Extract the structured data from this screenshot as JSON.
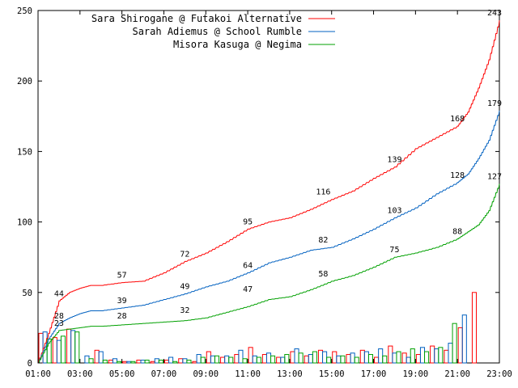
{
  "chart_data": {
    "type": "line",
    "title": "",
    "xlabel": "",
    "ylabel": "",
    "ylim": [
      0,
      250
    ],
    "xlim": [
      "01:00",
      "23:00"
    ],
    "yticks": [
      0,
      50,
      100,
      150,
      200,
      250
    ],
    "xticks": [
      "01:00",
      "03:00",
      "05:00",
      "07:00",
      "09:00",
      "11:00",
      "13:00",
      "15:00",
      "17:00",
      "19:00",
      "21:00",
      "23:00"
    ],
    "grid": false,
    "legend_position": "top-right",
    "hour_label_times": [
      "02:00",
      "03:00",
      "04:00",
      "05:00",
      "06:00",
      "07:00",
      "08:00",
      "09:00",
      "10:00",
      "11:00",
      "12:00",
      "13:00",
      "14:00",
      "15:00",
      "16:00",
      "17:00",
      "18:00",
      "19:00",
      "20:00",
      "21:00",
      "22:00",
      "23:00"
    ],
    "series": [
      {
        "name": "Sara Shirogane @ Futakoi Alternative",
        "color": "#ff0000",
        "cumulative": {
          "x": [
            "01:00",
            "01:30",
            "02:00",
            "02:30",
            "03:00",
            "03:30",
            "04:00",
            "05:00",
            "06:00",
            "07:00",
            "08:00",
            "09:00",
            "10:00",
            "11:00",
            "12:00",
            "13:00",
            "14:00",
            "15:00",
            "16:00",
            "17:00",
            "18:00",
            "19:00",
            "20:00",
            "21:00",
            "21:30",
            "22:00",
            "22:30",
            "23:00"
          ],
          "y": [
            0,
            21,
            44,
            50,
            53,
            55,
            55,
            57,
            58,
            64,
            72,
            78,
            86,
            95,
            100,
            103,
            109,
            116,
            122,
            131,
            139,
            152,
            160,
            168,
            178,
            195,
            215,
            243
          ]
        },
        "point_labels": [
          44,
          57,
          72,
          95,
          116,
          139,
          168,
          243
        ],
        "hourly": [
          21,
          18,
          24,
          0,
          9,
          2,
          1,
          2,
          1,
          2,
          3,
          1,
          8,
          4,
          6,
          11,
          6,
          4,
          8,
          5,
          9,
          8,
          6,
          9,
          4,
          12,
          7,
          6,
          12,
          9,
          25,
          50,
          0
        ]
      },
      {
        "name": "Sarah Adiemus @ School Rumble",
        "color": "#0060c0",
        "cumulative": {
          "x": [
            "01:00",
            "01:30",
            "02:00",
            "02:30",
            "03:00",
            "03:30",
            "04:00",
            "05:00",
            "06:00",
            "07:00",
            "08:00",
            "09:00",
            "10:00",
            "11:00",
            "12:00",
            "13:00",
            "14:00",
            "15:00",
            "16:00",
            "17:00",
            "18:00",
            "19:00",
            "20:00",
            "21:00",
            "21:30",
            "22:00",
            "22:30",
            "23:00"
          ],
          "y": [
            0,
            17,
            28,
            32,
            35,
            37,
            37,
            39,
            41,
            45,
            49,
            54,
            58,
            64,
            71,
            75,
            80,
            82,
            88,
            95,
            103,
            110,
            120,
            128,
            134,
            145,
            158,
            179
          ]
        },
        "point_labels": [
          28,
          39,
          49,
          64,
          82,
          103,
          128,
          179
        ],
        "hourly": [
          22,
          16,
          23,
          5,
          8,
          3,
          1,
          2,
          3,
          4,
          3,
          6,
          5,
          5,
          9,
          5,
          7,
          4,
          10,
          6,
          8,
          5,
          7,
          8,
          10,
          7,
          4,
          11,
          10,
          14,
          34,
          0
        ]
      },
      {
        "name": "Misora Kasuga @ Negima",
        "color": "#00a000",
        "cumulative": {
          "x": [
            "01:00",
            "01:30",
            "02:00",
            "02:30",
            "03:00",
            "03:30",
            "04:00",
            "05:00",
            "06:00",
            "07:00",
            "08:00",
            "09:00",
            "10:00",
            "11:00",
            "12:00",
            "13:00",
            "14:00",
            "15:00",
            "16:00",
            "17:00",
            "18:00",
            "19:00",
            "20:00",
            "21:00",
            "21:30",
            "22:00",
            "22:30",
            "23:00"
          ],
          "y": [
            0,
            14,
            23,
            24,
            25,
            26,
            26,
            27,
            28,
            29,
            30,
            32,
            36,
            40,
            45,
            47,
            52,
            58,
            62,
            68,
            75,
            78,
            82,
            88,
            93,
            98,
            108,
            127
          ]
        },
        "point_labels": [
          23,
          28,
          32,
          47,
          58,
          75,
          88,
          127
        ],
        "hourly": [
          17,
          19,
          22,
          3,
          2,
          1,
          1,
          2,
          2,
          1,
          2,
          4,
          5,
          4,
          3,
          4,
          5,
          6,
          7,
          8,
          4,
          5,
          4,
          6,
          5,
          8,
          10,
          8,
          11,
          28,
          0
        ]
      }
    ]
  }
}
